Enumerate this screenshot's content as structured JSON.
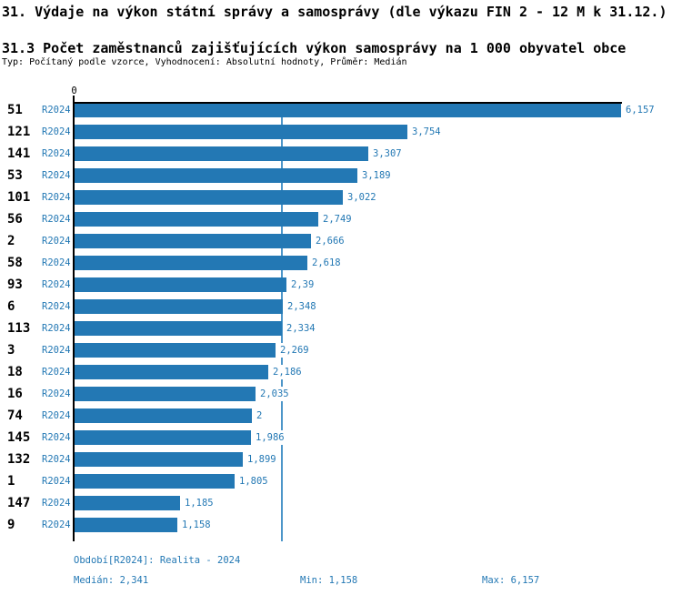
{
  "header": {
    "title": "31. Výdaje na výkon státní správy a samosprávy (dle výkazu FIN 2 - 12 M k 31.12.)",
    "subtitle": "31.3 Počet zaměstnanců zajišťujících výkon samosprávy na 1 000 obyvatel obce",
    "meta": "Typ: Počítaný podle vzorce, Vyhodnocení: Absolutní hodnoty, Průměr: Medián"
  },
  "chart_data": {
    "type": "bar",
    "orientation": "horizontal",
    "title": "31.3 Počet zaměstnanců zajišťujících výkon samosprávy na 1 000 obyvatel obce",
    "xlabel": "",
    "ylabel": "",
    "xlim": [
      0,
      6.157
    ],
    "axis_zero_label": "0",
    "series_label": "R2024",
    "categories": [
      "51",
      "121",
      "141",
      "53",
      "101",
      "56",
      "2",
      "58",
      "93",
      "6",
      "113",
      "3",
      "18",
      "16",
      "74",
      "145",
      "132",
      "1",
      "147",
      "9"
    ],
    "values": [
      6.157,
      3.754,
      3.307,
      3.189,
      3.022,
      2.749,
      2.666,
      2.618,
      2.39,
      2.348,
      2.334,
      2.269,
      2.186,
      2.035,
      2,
      1.986,
      1.899,
      1.805,
      1.185,
      1.158
    ],
    "value_labels": [
      "6,157",
      "3,754",
      "3,307",
      "3,189",
      "3,022",
      "2,749",
      "2,666",
      "2,618",
      "2,39",
      "2,348",
      "2,334",
      "2,269",
      "2,186",
      "2,035",
      "2",
      "1,986",
      "1,899",
      "1,805",
      "1,185",
      "1,158"
    ],
    "median_line_value": 2.341,
    "grid": "median-line-only",
    "legend_position": "none",
    "bar_color": "#2378b4",
    "label_color": "#2378b4",
    "median_line_color": "#4d96c9"
  },
  "footer": {
    "period": "Období[R2024]: Realita - 2024",
    "median": "Medián: 2,341",
    "min": "Min: 1,158",
    "max": "Max: 6,157"
  }
}
